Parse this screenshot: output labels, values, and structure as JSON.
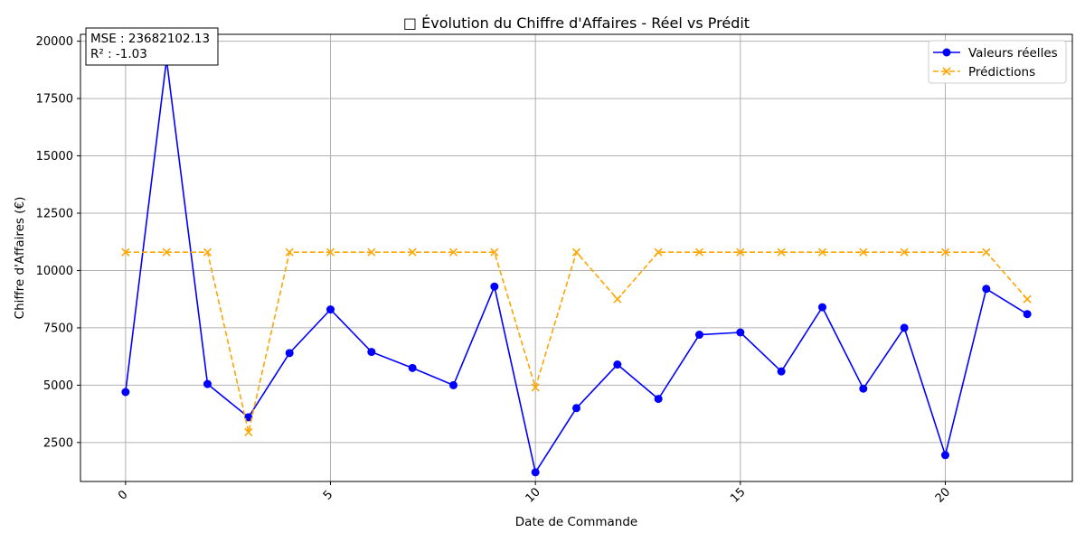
{
  "chart_data": {
    "type": "line",
    "title": "□ Évolution du Chiffre d'Affaires - Réel vs Prédit",
    "xlabel": "Date de Commande",
    "ylabel": "Chiffre d'Affaires (€)",
    "xlim": [
      -1.1,
      23.1
    ],
    "ylim": [
      800,
      20300
    ],
    "x_ticks": [
      0,
      5,
      10,
      15,
      20
    ],
    "y_ticks": [
      2500,
      5000,
      7500,
      10000,
      12500,
      15000,
      17500,
      20000
    ],
    "grid": true,
    "legend_position": "top-right",
    "x": [
      0,
      1,
      2,
      3,
      4,
      5,
      6,
      7,
      8,
      9,
      10,
      11,
      12,
      13,
      14,
      15,
      16,
      17,
      18,
      19,
      20,
      21,
      22
    ],
    "series": [
      {
        "name": "Valeurs réelles",
        "color": "#0000ff",
        "linestyle": "solid",
        "marker": "circle",
        "values": [
          4700,
          19200,
          5050,
          3600,
          6400,
          8300,
          6450,
          5750,
          5000,
          9300,
          1200,
          4000,
          5900,
          4400,
          7200,
          7300,
          5600,
          8400,
          4850,
          7500,
          1950,
          9200,
          8100
        ]
      },
      {
        "name": "Prédictions",
        "color": "#ffa500",
        "linestyle": "dashed",
        "marker": "x",
        "values": [
          10800,
          10800,
          10800,
          2950,
          10800,
          10800,
          10800,
          10800,
          10800,
          10800,
          4900,
          10800,
          8750,
          10800,
          10800,
          10800,
          10800,
          10800,
          10800,
          10800,
          10800,
          10800,
          8750
        ]
      }
    ],
    "annotations": {
      "mse": "MSE : 23682102.13",
      "r2": "R² : -1.03"
    }
  }
}
